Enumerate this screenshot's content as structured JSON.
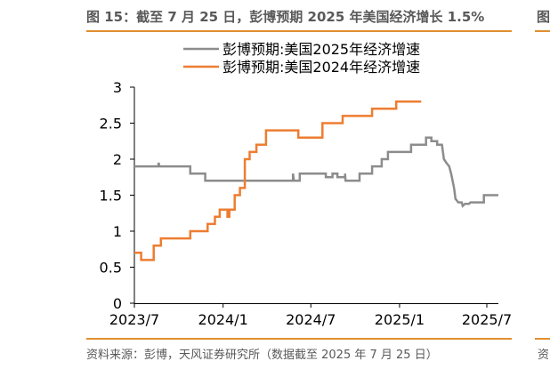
{
  "header": {
    "title": "图 15：截至 7 月 25 日，彭博预期 2025 年美国经济增长 1.5%",
    "edge_glyph": "图"
  },
  "footer": {
    "source": "资料来源：彭博，天风证券研究所（数据截至 2025 年 7 月 25 日）",
    "edge_glyph": "资"
  },
  "chart_data": {
    "type": "line",
    "title": "",
    "xlabel": "",
    "ylabel": "",
    "ylim": [
      0,
      3
    ],
    "yticks": [
      "0",
      "0.5",
      "1",
      "1.5",
      "2",
      "2.5",
      "3"
    ],
    "xticks": [
      "2023/7",
      "2024/1",
      "2024/7",
      "2025/1",
      "2025/7"
    ],
    "grid": false,
    "legend_position": "top",
    "series": [
      {
        "name": "彭博预期:美国2025年经济增速",
        "color": "#8C8C8C",
        "points": [
          [
            "2023-07-01",
            1.9
          ],
          [
            "2023-08-20",
            1.9
          ],
          [
            "2023-08-20",
            1.95
          ],
          [
            "2023-08-22",
            1.9
          ],
          [
            "2023-10-25",
            1.9
          ],
          [
            "2023-10-25",
            1.8
          ],
          [
            "2023-11-25",
            1.8
          ],
          [
            "2023-11-25",
            1.7
          ],
          [
            "2024-05-25",
            1.7
          ],
          [
            "2024-05-25",
            1.8
          ],
          [
            "2024-05-27",
            1.7
          ],
          [
            "2024-06-08",
            1.7
          ],
          [
            "2024-06-08",
            1.8
          ],
          [
            "2024-08-01",
            1.8
          ],
          [
            "2024-08-01",
            1.75
          ],
          [
            "2024-08-15",
            1.75
          ],
          [
            "2024-08-15",
            1.8
          ],
          [
            "2024-08-25",
            1.8
          ],
          [
            "2024-08-25",
            1.75
          ],
          [
            "2024-09-10",
            1.75
          ],
          [
            "2024-09-10",
            1.8
          ],
          [
            "2024-09-11",
            1.7
          ],
          [
            "2024-10-10",
            1.7
          ],
          [
            "2024-10-10",
            1.8
          ],
          [
            "2024-11-05",
            1.8
          ],
          [
            "2024-11-05",
            1.9
          ],
          [
            "2024-11-25",
            1.9
          ],
          [
            "2024-11-25",
            2.0
          ],
          [
            "2024-12-08",
            2.0
          ],
          [
            "2024-12-08",
            2.1
          ],
          [
            "2025-01-25",
            2.1
          ],
          [
            "2025-01-25",
            2.2
          ],
          [
            "2025-02-25",
            2.2
          ],
          [
            "2025-02-25",
            2.3
          ],
          [
            "2025-03-08",
            2.3
          ],
          [
            "2025-03-08",
            2.25
          ],
          [
            "2025-03-20",
            2.25
          ],
          [
            "2025-03-20",
            2.2
          ],
          [
            "2025-03-30",
            2.2
          ],
          [
            "2025-04-03",
            2.0
          ],
          [
            "2025-04-08",
            1.95
          ],
          [
            "2025-04-14",
            1.9
          ],
          [
            "2025-04-18",
            1.8
          ],
          [
            "2025-04-24",
            1.6
          ],
          [
            "2025-04-27",
            1.45
          ],
          [
            "2025-05-03",
            1.4
          ],
          [
            "2025-05-10",
            1.4
          ],
          [
            "2025-05-12",
            1.35
          ],
          [
            "2025-05-17",
            1.38
          ],
          [
            "2025-05-25",
            1.38
          ],
          [
            "2025-05-28",
            1.4
          ],
          [
            "2025-06-25",
            1.4
          ],
          [
            "2025-06-25",
            1.5
          ],
          [
            "2025-07-25",
            1.5
          ]
        ]
      },
      {
        "name": "彭博预期:美国2024年经济增速",
        "color": "#ED7D31",
        "points": [
          [
            "2023-07-01",
            0.7
          ],
          [
            "2023-07-15",
            0.7
          ],
          [
            "2023-07-15",
            0.6
          ],
          [
            "2023-08-10",
            0.6
          ],
          [
            "2023-08-10",
            0.8
          ],
          [
            "2023-08-25",
            0.8
          ],
          [
            "2023-08-25",
            0.9
          ],
          [
            "2023-10-25",
            0.9
          ],
          [
            "2023-10-25",
            1.0
          ],
          [
            "2023-11-30",
            1.0
          ],
          [
            "2023-11-30",
            1.1
          ],
          [
            "2023-12-15",
            1.1
          ],
          [
            "2023-12-15",
            1.2
          ],
          [
            "2023-12-25",
            1.2
          ],
          [
            "2023-12-25",
            1.3
          ],
          [
            "2024-01-10",
            1.3
          ],
          [
            "2024-01-10",
            1.2
          ],
          [
            "2024-01-14",
            1.2
          ],
          [
            "2024-01-14",
            1.3
          ],
          [
            "2024-01-25",
            1.3
          ],
          [
            "2024-01-25",
            1.5
          ],
          [
            "2024-02-05",
            1.5
          ],
          [
            "2024-02-05",
            1.6
          ],
          [
            "2024-02-15",
            1.6
          ],
          [
            "2024-02-15",
            2.0
          ],
          [
            "2024-02-25",
            2.0
          ],
          [
            "2024-02-25",
            2.1
          ],
          [
            "2024-03-10",
            2.1
          ],
          [
            "2024-03-10",
            2.2
          ],
          [
            "2024-03-30",
            2.2
          ],
          [
            "2024-03-30",
            2.4
          ],
          [
            "2024-06-05",
            2.4
          ],
          [
            "2024-06-05",
            2.3
          ],
          [
            "2024-07-25",
            2.3
          ],
          [
            "2024-07-25",
            2.5
          ],
          [
            "2024-09-05",
            2.5
          ],
          [
            "2024-09-05",
            2.6
          ],
          [
            "2024-11-05",
            2.6
          ],
          [
            "2024-11-05",
            2.7
          ],
          [
            "2024-12-25",
            2.7
          ],
          [
            "2024-12-25",
            2.8
          ],
          [
            "2025-02-15",
            2.8
          ]
        ]
      }
    ]
  }
}
